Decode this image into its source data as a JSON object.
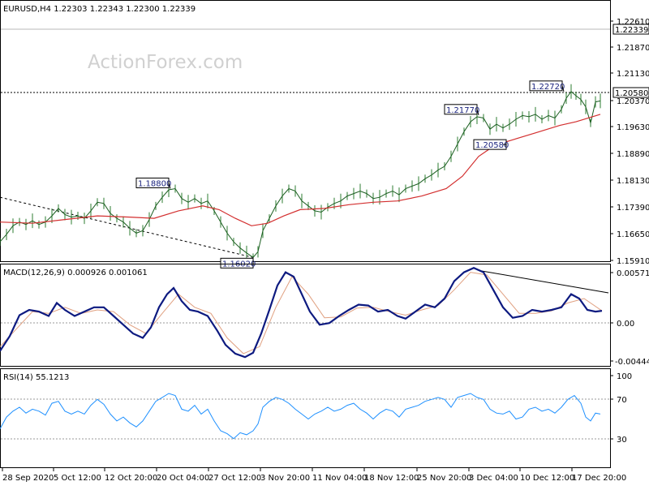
{
  "chart_data": [
    {
      "type": "line",
      "panel": "price",
      "title": "EURUSD,H4  1.22303 1.22343 1.22300 1.22339",
      "watermark": "ActionForex.com",
      "ylim": [
        1.159,
        1.2635
      ],
      "y_ticks": [
        "1.22610",
        "1.21870",
        "1.21130",
        "1.20370",
        "1.19630",
        "1.18890",
        "1.18130",
        "1.17390",
        "1.16650",
        "1.15910"
      ],
      "current_price": "1.22339",
      "level_line": "1.20580",
      "annotations": [
        {
          "text": "1.22720",
          "x": 695,
          "value": 1.2272
        },
        {
          "text": "1.21770",
          "x": 590,
          "value": 1.2177
        },
        {
          "text": "1.20580",
          "x": 620,
          "value": 1.2058
        },
        {
          "text": "1.18800",
          "x": 210,
          "value": 1.188
        },
        {
          "text": "1.16020",
          "x": 312,
          "value": 1.1602
        }
      ],
      "trendline": [
        [
          0,
          1.1845
        ],
        [
          312,
          1.1602
        ]
      ],
      "price_path": [
        [
          0,
          1.1665
        ],
        [
          8,
          1.1695
        ],
        [
          16,
          1.173
        ],
        [
          24,
          1.1745
        ],
        [
          32,
          1.1735
        ],
        [
          40,
          1.175
        ],
        [
          48,
          1.1735
        ],
        [
          56,
          1.1745
        ],
        [
          64,
          1.177
        ],
        [
          72,
          1.18
        ],
        [
          80,
          1.1775
        ],
        [
          88,
          1.1765
        ],
        [
          96,
          1.177
        ],
        [
          104,
          1.176
        ],
        [
          112,
          1.179
        ],
        [
          120,
          1.1825
        ],
        [
          128,
          1.182
        ],
        [
          136,
          1.178
        ],
        [
          144,
          1.176
        ],
        [
          152,
          1.1745
        ],
        [
          160,
          1.172
        ],
        [
          168,
          1.17
        ],
        [
          176,
          1.171
        ],
        [
          184,
          1.1755
        ],
        [
          192,
          1.181
        ],
        [
          200,
          1.1845
        ],
        [
          208,
          1.1875
        ],
        [
          216,
          1.188
        ],
        [
          224,
          1.184
        ],
        [
          232,
          1.1825
        ],
        [
          240,
          1.184
        ],
        [
          248,
          1.182
        ],
        [
          256,
          1.183
        ],
        [
          264,
          1.179
        ],
        [
          272,
          1.1745
        ],
        [
          280,
          1.17
        ],
        [
          288,
          1.1665
        ],
        [
          296,
          1.164
        ],
        [
          304,
          1.162
        ],
        [
          312,
          1.1602
        ],
        [
          318,
          1.1625
        ],
        [
          324,
          1.171
        ],
        [
          332,
          1.176
        ],
        [
          340,
          1.181
        ],
        [
          348,
          1.185
        ],
        [
          356,
          1.188
        ],
        [
          364,
          1.187
        ],
        [
          372,
          1.183
        ],
        [
          380,
          1.181
        ],
        [
          388,
          1.179
        ],
        [
          396,
          1.1785
        ],
        [
          404,
          1.1805
        ],
        [
          412,
          1.182
        ],
        [
          420,
          1.183
        ],
        [
          428,
          1.185
        ],
        [
          436,
          1.186
        ],
        [
          444,
          1.187
        ],
        [
          452,
          1.186
        ],
        [
          460,
          1.184
        ],
        [
          468,
          1.1845
        ],
        [
          476,
          1.186
        ],
        [
          484,
          1.187
        ],
        [
          492,
          1.1855
        ],
        [
          500,
          1.188
        ],
        [
          508,
          1.189
        ],
        [
          516,
          1.19
        ],
        [
          524,
          1.192
        ],
        [
          532,
          1.1935
        ],
        [
          540,
          1.1955
        ],
        [
          548,
          1.197
        ],
        [
          556,
          1.201
        ],
        [
          564,
          1.206
        ],
        [
          572,
          1.211
        ],
        [
          580,
          1.215
        ],
        [
          588,
          1.217
        ],
        [
          596,
          1.2165
        ],
        [
          604,
          1.212
        ],
        [
          612,
          1.214
        ],
        [
          620,
          1.2125
        ],
        [
          628,
          1.214
        ],
        [
          636,
          1.216
        ],
        [
          644,
          1.2175
        ],
        [
          652,
          1.217
        ],
        [
          660,
          1.218
        ],
        [
          668,
          1.216
        ],
        [
          676,
          1.2175
        ],
        [
          684,
          1.2165
        ],
        [
          692,
          1.22
        ],
        [
          698,
          1.2245
        ],
        [
          704,
          1.2272
        ],
        [
          710,
          1.2255
        ],
        [
          716,
          1.224
        ],
        [
          722,
          1.221
        ],
        [
          728,
          1.2145
        ],
        [
          734,
          1.223
        ],
        [
          740,
          1.2234
        ]
      ],
      "ma_path": [
        [
          0,
          1.1745
        ],
        [
          40,
          1.174
        ],
        [
          80,
          1.1755
        ],
        [
          120,
          1.177
        ],
        [
          160,
          1.1765
        ],
        [
          190,
          1.176
        ],
        [
          220,
          1.179
        ],
        [
          250,
          1.181
        ],
        [
          270,
          1.1795
        ],
        [
          290,
          1.176
        ],
        [
          310,
          1.173
        ],
        [
          330,
          1.174
        ],
        [
          350,
          1.177
        ],
        [
          370,
          1.1795
        ],
        [
          400,
          1.18
        ],
        [
          430,
          1.1815
        ],
        [
          460,
          1.1825
        ],
        [
          490,
          1.183
        ],
        [
          520,
          1.185
        ],
        [
          550,
          1.188
        ],
        [
          570,
          1.193
        ],
        [
          590,
          1.201
        ],
        [
          610,
          1.2055
        ],
        [
          630,
          1.2075
        ],
        [
          660,
          1.2105
        ],
        [
          690,
          1.2135
        ],
        [
          710,
          1.215
        ],
        [
          740,
          1.218
        ]
      ]
    },
    {
      "type": "line",
      "panel": "macd",
      "title": "MACD(12,26,9) 0.000926 0.001061",
      "ylim": [
        -0.0052,
        0.0063
      ],
      "y_ticks": [
        "0.00571",
        "0.00",
        "-0.004444"
      ],
      "trendline": [
        [
          590,
          0.00571
        ],
        [
          750,
          0.00315
        ]
      ],
      "macd_path": [
        [
          0,
          -0.0035
        ],
        [
          12,
          -0.0018
        ],
        [
          24,
          0.0006
        ],
        [
          36,
          0.0012
        ],
        [
          48,
          0.001
        ],
        [
          60,
          0.0005
        ],
        [
          70,
          0.002
        ],
        [
          80,
          0.0012
        ],
        [
          92,
          0.0005
        ],
        [
          104,
          0.001
        ],
        [
          116,
          0.0015
        ],
        [
          128,
          0.0015
        ],
        [
          140,
          0.0005
        ],
        [
          152,
          -0.0005
        ],
        [
          164,
          -0.0015
        ],
        [
          176,
          -0.002
        ],
        [
          186,
          -0.0008
        ],
        [
          196,
          0.0015
        ],
        [
          206,
          0.003
        ],
        [
          214,
          0.0037
        ],
        [
          224,
          0.0022
        ],
        [
          234,
          0.0012
        ],
        [
          244,
          0.001
        ],
        [
          256,
          0.0005
        ],
        [
          268,
          -0.0012
        ],
        [
          278,
          -0.0028
        ],
        [
          290,
          -0.0038
        ],
        [
          302,
          -0.0042
        ],
        [
          312,
          -0.0037
        ],
        [
          322,
          -0.0015
        ],
        [
          332,
          0.0012
        ],
        [
          342,
          0.004
        ],
        [
          352,
          0.0055
        ],
        [
          362,
          0.005
        ],
        [
          372,
          0.003
        ],
        [
          382,
          0.001
        ],
        [
          394,
          -0.0005
        ],
        [
          406,
          -0.0003
        ],
        [
          418,
          0.0005
        ],
        [
          430,
          0.0012
        ],
        [
          442,
          0.0018
        ],
        [
          454,
          0.0017
        ],
        [
          466,
          0.001
        ],
        [
          478,
          0.0012
        ],
        [
          490,
          0.0005
        ],
        [
          500,
          0.0002
        ],
        [
          512,
          0.001
        ],
        [
          524,
          0.0018
        ],
        [
          536,
          0.0015
        ],
        [
          548,
          0.0025
        ],
        [
          560,
          0.0045
        ],
        [
          572,
          0.0055
        ],
        [
          584,
          0.006
        ],
        [
          596,
          0.0055
        ],
        [
          608,
          0.0035
        ],
        [
          620,
          0.0015
        ],
        [
          632,
          0.0003
        ],
        [
          644,
          0.0005
        ],
        [
          656,
          0.0012
        ],
        [
          668,
          0.001
        ],
        [
          680,
          0.0012
        ],
        [
          692,
          0.0015
        ],
        [
          704,
          0.003
        ],
        [
          714,
          0.0025
        ],
        [
          724,
          0.0012
        ],
        [
          734,
          0.001
        ],
        [
          742,
          0.0011
        ]
      ],
      "signal_path": [
        [
          0,
          -0.003
        ],
        [
          20,
          -0.001
        ],
        [
          40,
          0.001
        ],
        [
          60,
          0.0008
        ],
        [
          80,
          0.0015
        ],
        [
          100,
          0.0008
        ],
        [
          120,
          0.0012
        ],
        [
          140,
          0.001
        ],
        [
          160,
          -0.0005
        ],
        [
          180,
          -0.0015
        ],
        [
          200,
          0.0008
        ],
        [
          220,
          0.003
        ],
        [
          240,
          0.0015
        ],
        [
          260,
          0.0008
        ],
        [
          280,
          -0.002
        ],
        [
          300,
          -0.0038
        ],
        [
          320,
          -0.003
        ],
        [
          340,
          0.0015
        ],
        [
          360,
          0.005
        ],
        [
          380,
          0.003
        ],
        [
          400,
          0.0003
        ],
        [
          420,
          0.0004
        ],
        [
          440,
          0.0014
        ],
        [
          460,
          0.0015
        ],
        [
          480,
          0.001
        ],
        [
          500,
          0.0006
        ],
        [
          520,
          0.0012
        ],
        [
          540,
          0.0017
        ],
        [
          560,
          0.0035
        ],
        [
          580,
          0.0055
        ],
        [
          600,
          0.0052
        ],
        [
          620,
          0.003
        ],
        [
          640,
          0.0008
        ],
        [
          660,
          0.0008
        ],
        [
          680,
          0.0011
        ],
        [
          700,
          0.002
        ],
        [
          720,
          0.0025
        ],
        [
          742,
          0.0011
        ]
      ]
    },
    {
      "type": "line",
      "panel": "rsi",
      "title": "RSI(14) 55.1213",
      "ylim": [
        0,
        100
      ],
      "y_ticks": [
        "100",
        "70",
        "30"
      ],
      "levels": [
        70,
        30
      ],
      "rsi_path": [
        [
          0,
          40
        ],
        [
          8,
          52
        ],
        [
          16,
          58
        ],
        [
          24,
          62
        ],
        [
          32,
          56
        ],
        [
          40,
          60
        ],
        [
          48,
          58
        ],
        [
          56,
          54
        ],
        [
          64,
          66
        ],
        [
          72,
          68
        ],
        [
          80,
          58
        ],
        [
          88,
          55
        ],
        [
          96,
          58
        ],
        [
          104,
          55
        ],
        [
          112,
          64
        ],
        [
          120,
          70
        ],
        [
          128,
          65
        ],
        [
          136,
          55
        ],
        [
          144,
          48
        ],
        [
          152,
          52
        ],
        [
          160,
          46
        ],
        [
          168,
          42
        ],
        [
          176,
          48
        ],
        [
          184,
          58
        ],
        [
          192,
          68
        ],
        [
          200,
          72
        ],
        [
          208,
          76
        ],
        [
          216,
          74
        ],
        [
          224,
          60
        ],
        [
          232,
          58
        ],
        [
          240,
          64
        ],
        [
          248,
          55
        ],
        [
          256,
          60
        ],
        [
          264,
          48
        ],
        [
          272,
          38
        ],
        [
          280,
          35
        ],
        [
          288,
          30
        ],
        [
          296,
          36
        ],
        [
          304,
          34
        ],
        [
          312,
          38
        ],
        [
          318,
          45
        ],
        [
          324,
          62
        ],
        [
          332,
          68
        ],
        [
          340,
          72
        ],
        [
          348,
          70
        ],
        [
          356,
          66
        ],
        [
          364,
          60
        ],
        [
          372,
          55
        ],
        [
          380,
          50
        ],
        [
          388,
          55
        ],
        [
          396,
          58
        ],
        [
          404,
          62
        ],
        [
          412,
          58
        ],
        [
          420,
          60
        ],
        [
          428,
          64
        ],
        [
          436,
          66
        ],
        [
          444,
          60
        ],
        [
          452,
          56
        ],
        [
          460,
          50
        ],
        [
          468,
          56
        ],
        [
          476,
          60
        ],
        [
          484,
          58
        ],
        [
          492,
          52
        ],
        [
          500,
          60
        ],
        [
          508,
          62
        ],
        [
          516,
          64
        ],
        [
          524,
          68
        ],
        [
          532,
          70
        ],
        [
          540,
          72
        ],
        [
          548,
          70
        ],
        [
          556,
          62
        ],
        [
          564,
          72
        ],
        [
          572,
          74
        ],
        [
          580,
          76
        ],
        [
          588,
          72
        ],
        [
          596,
          70
        ],
        [
          604,
          60
        ],
        [
          612,
          56
        ],
        [
          620,
          55
        ],
        [
          628,
          58
        ],
        [
          636,
          50
        ],
        [
          644,
          52
        ],
        [
          652,
          60
        ],
        [
          660,
          62
        ],
        [
          668,
          58
        ],
        [
          676,
          60
        ],
        [
          684,
          56
        ],
        [
          692,
          62
        ],
        [
          700,
          70
        ],
        [
          708,
          74
        ],
        [
          716,
          66
        ],
        [
          722,
          52
        ],
        [
          728,
          48
        ],
        [
          734,
          56
        ],
        [
          740,
          55
        ]
      ]
    }
  ],
  "x_axis": {
    "labels": [
      "28 Sep 2020",
      "5 Oct 12:00",
      "12 Oct 20:00",
      "20 Oct 04:00",
      "27 Oct 12:00",
      "3 Nov 20:00",
      "11 Nov 04:00",
      "18 Nov 12:00",
      "25 Nov 20:00",
      "3 Dec 04:00",
      "10 Dec 12:00",
      "17 Dec 20:00"
    ]
  }
}
